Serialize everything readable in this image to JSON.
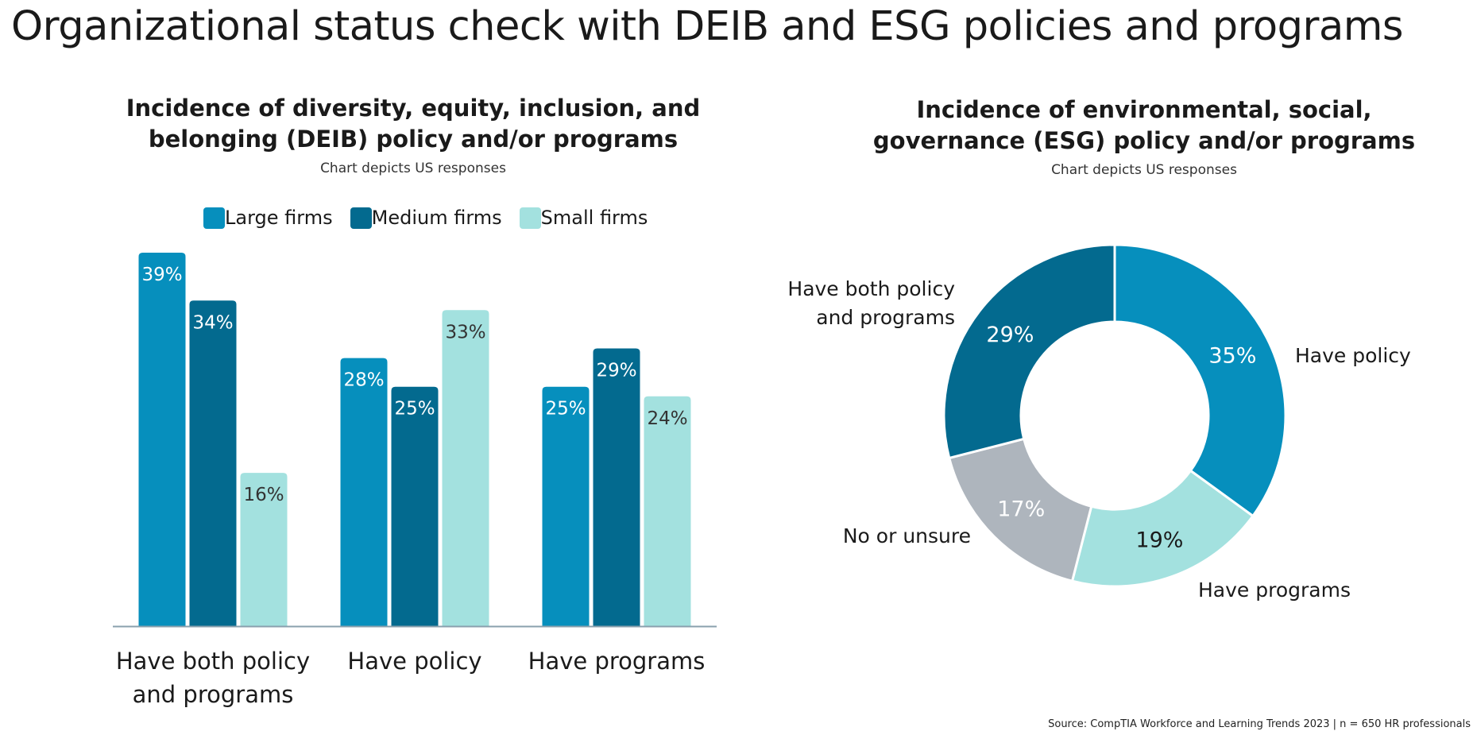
{
  "page": {
    "title": "Organizational status check with DEIB and ESG policies and programs",
    "source": "Source: CompTIA Workforce and Learning Trends 2023 | n = 650 HR professionals"
  },
  "chart_data": [
    {
      "type": "bar",
      "title": "Incidence of diversity, equity, inclusion, and belonging (DEIB) policy and/or programs",
      "title_lines": [
        "Incidence of diversity, equity, inclusion, and",
        "belonging (DEIB) policy and/or programs"
      ],
      "subtitle": "Chart depicts US responses",
      "categories": [
        "Have both policy and programs",
        "Have policy",
        "Have programs"
      ],
      "category_lines": [
        [
          "Have both policy",
          "and programs"
        ],
        [
          "Have policy"
        ],
        [
          "Have programs"
        ]
      ],
      "series": [
        {
          "name": "Large firms",
          "color": "#068fbd",
          "label_color": "#ffffff",
          "values": [
            39,
            28,
            25
          ],
          "labels": [
            "39%",
            "28%",
            "25%"
          ]
        },
        {
          "name": "Medium firms",
          "color": "#036a8f",
          "label_color": "#ffffff",
          "values": [
            34,
            25,
            29
          ],
          "labels": [
            "34%",
            "25%",
            "29%"
          ]
        },
        {
          "name": "Small firms",
          "color": "#a3e1df",
          "label_color": "#333333",
          "values": [
            16,
            33,
            24
          ],
          "labels": [
            "16%",
            "33%",
            "24%"
          ]
        }
      ],
      "ylim": [
        0,
        40
      ],
      "xlabel": "",
      "ylabel": "",
      "grid": false,
      "legend": "top"
    },
    {
      "type": "pie",
      "title": "Incidence of environmental, social, governance (ESG) policy and/or programs",
      "title_lines": [
        "Incidence of environmental, social,",
        "governance (ESG) policy and/or programs"
      ],
      "subtitle": "Chart depicts US responses",
      "donut": true,
      "slices": [
        {
          "label": "Have policy",
          "label_lines": [
            "Have policy"
          ],
          "value": 35,
          "value_label": "35%",
          "color": "#068fbd",
          "text_color": "#ffffff"
        },
        {
          "label": "Have programs",
          "label_lines": [
            "Have programs"
          ],
          "value": 19,
          "value_label": "19%",
          "color": "#a3e1df",
          "text_color": "#1a1a1a"
        },
        {
          "label": "No or unsure",
          "label_lines": [
            "No or unsure"
          ],
          "value": 17,
          "value_label": "17%",
          "color": "#aeb5bd",
          "text_color": "#ffffff"
        },
        {
          "label": "Have both policy and programs",
          "label_lines": [
            "Have both policy",
            "and programs"
          ],
          "value": 29,
          "value_label": "29%",
          "color": "#036a8f",
          "text_color": "#ffffff"
        }
      ]
    }
  ]
}
